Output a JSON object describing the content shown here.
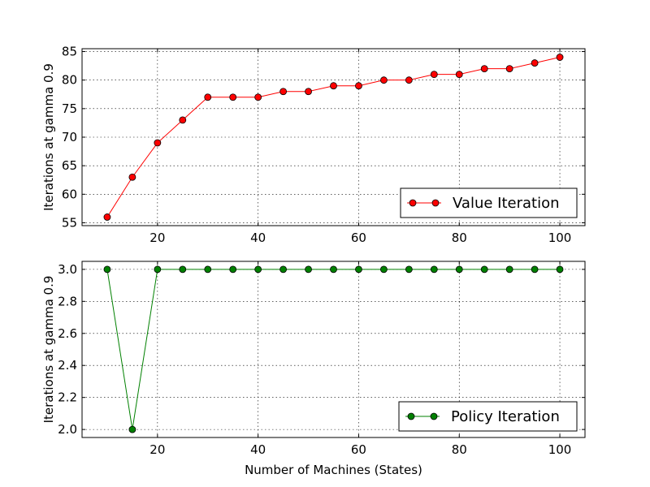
{
  "chart_data": [
    {
      "type": "line",
      "x": [
        10,
        15,
        20,
        25,
        30,
        35,
        40,
        45,
        50,
        55,
        60,
        65,
        70,
        75,
        80,
        85,
        90,
        95,
        100
      ],
      "series": [
        {
          "name": "Value Iteration",
          "color": "#ff0000",
          "marker": "circle",
          "values": [
            56,
            63,
            69,
            73,
            77,
            77,
            77,
            78,
            78,
            79,
            79,
            80,
            80,
            81,
            81,
            82,
            82,
            83,
            84
          ]
        }
      ],
      "xlabel": "",
      "ylabel": "Iterations at gamma 0.9",
      "xlim": [
        5,
        105
      ],
      "ylim": [
        54.5,
        85.5
      ],
      "xticks": [
        20,
        40,
        60,
        80,
        100
      ],
      "xtick_labels": [
        "20",
        "40",
        "60",
        "80",
        "100"
      ],
      "yticks": [
        55,
        60,
        65,
        70,
        75,
        80,
        85
      ],
      "ytick_labels": [
        "55",
        "60",
        "65",
        "70",
        "75",
        "80",
        "85"
      ],
      "grid": true,
      "legend": "lower-right"
    },
    {
      "type": "line",
      "x": [
        10,
        15,
        20,
        25,
        30,
        35,
        40,
        45,
        50,
        55,
        60,
        65,
        70,
        75,
        80,
        85,
        90,
        95,
        100
      ],
      "series": [
        {
          "name": "Policy Iteration",
          "color": "#008000",
          "marker": "circle",
          "values": [
            3,
            2,
            3,
            3,
            3,
            3,
            3,
            3,
            3,
            3,
            3,
            3,
            3,
            3,
            3,
            3,
            3,
            3,
            3
          ]
        }
      ],
      "xlabel": "Number of Machines (States)",
      "ylabel": "Iterations at gamma 0.9",
      "xlim": [
        5,
        105
      ],
      "ylim": [
        1.95,
        3.05
      ],
      "xticks": [
        20,
        40,
        60,
        80,
        100
      ],
      "xtick_labels": [
        "20",
        "40",
        "60",
        "80",
        "100"
      ],
      "yticks": [
        2.0,
        2.2,
        2.4,
        2.6,
        2.8,
        3.0
      ],
      "ytick_labels": [
        "2.0",
        "2.2",
        "2.4",
        "2.6",
        "2.8",
        "3.0"
      ],
      "grid": true,
      "legend": "lower-right"
    }
  ]
}
